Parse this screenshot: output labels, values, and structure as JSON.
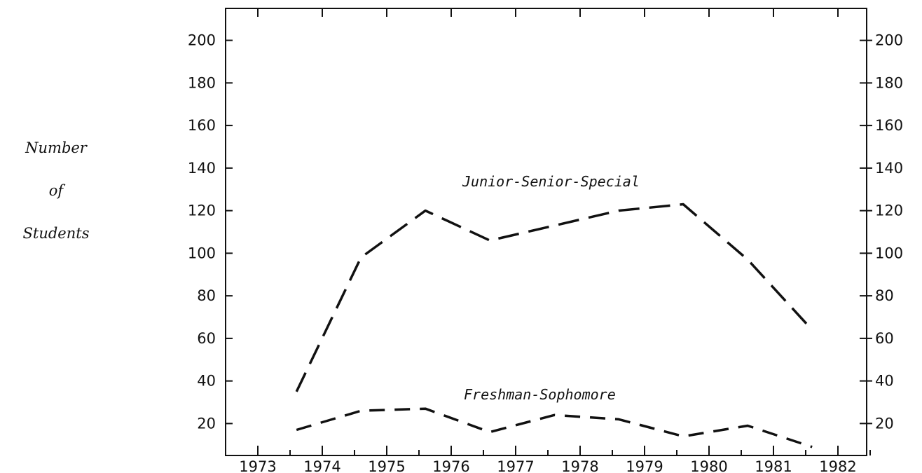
{
  "chart_data": {
    "type": "line",
    "title": "",
    "xlabel": "",
    "ylabel_lines": [
      "Number",
      "of",
      "Students"
    ],
    "categories": [
      "1973",
      "1974",
      "1975",
      "1976",
      "1977",
      "1978",
      "1979",
      "1980",
      "1981",
      "1982"
    ],
    "y_ticks": [
      20,
      40,
      60,
      80,
      100,
      120,
      140,
      160,
      180,
      200
    ],
    "ylim": [
      5,
      215
    ],
    "grid": false,
    "legend": "none",
    "series": [
      {
        "name": "Junior-Senior-Special",
        "x": [
          1973.6,
          1974.6,
          1975.6,
          1976.6,
          1977.6,
          1978.6,
          1979.6,
          1980.6,
          1981.6
        ],
        "values": [
          35,
          98,
          120,
          106,
          113,
          120,
          123,
          97,
          64
        ]
      },
      {
        "name": "Freshman-Sophomore",
        "x": [
          1973.6,
          1974.6,
          1975.6,
          1976.6,
          1977.6,
          1978.6,
          1979.6,
          1980.6,
          1981.6
        ],
        "values": [
          17,
          26,
          27,
          16,
          24,
          22,
          14,
          19,
          9
        ]
      }
    ]
  }
}
